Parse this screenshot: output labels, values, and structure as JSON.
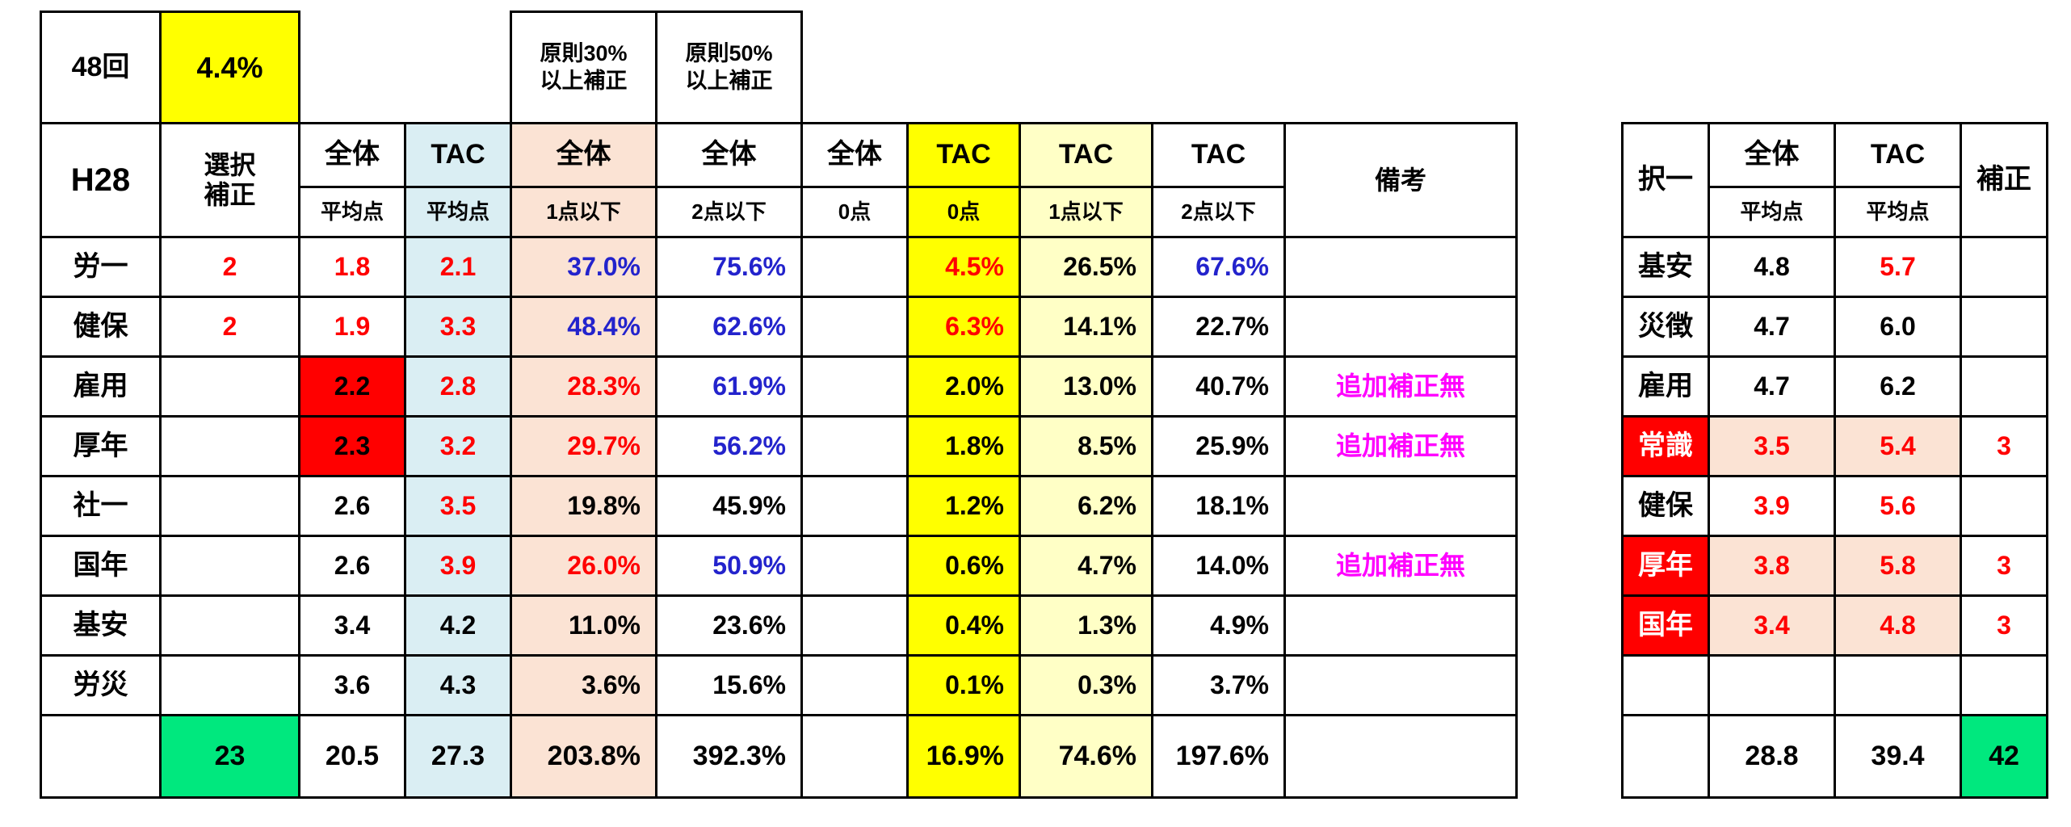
{
  "colors": {
    "black": "#000000",
    "white": "#ffffff",
    "red": "#ff0000",
    "blue": "#2323cc",
    "magenta": "#ff00ff",
    "yellow": "#ffff00",
    "lblue": "#daeef3",
    "peach": "#fbe3d4",
    "lyellow": "#ffffc6",
    "green": "#00e87e"
  },
  "left": {
    "top": {
      "exam": "48回",
      "rate": "4.4%",
      "rule30": "原則30%\n以上補正",
      "rule50": "原則50%\n以上補正"
    },
    "header": {
      "h28": "H28",
      "sentaku": "選択\n補正",
      "biko": "備考",
      "groups": [
        "全体",
        "TAC",
        "全体",
        "全体",
        "全体",
        "TAC",
        "TAC",
        "TAC"
      ],
      "subs": [
        "平均点",
        "平均点",
        "1点以下",
        "2点以下",
        "0点",
        "0点",
        "1点以下",
        "2点以下"
      ]
    },
    "rows": [
      {
        "label": {
          "t": "労一"
        },
        "cells": [
          {
            "t": "2",
            "c": "red"
          },
          {
            "t": "1.8",
            "c": "red"
          },
          {
            "t": "2.1",
            "c": "red"
          },
          {
            "t": "37.0%",
            "c": "blue"
          },
          {
            "t": "75.6%",
            "c": "blue"
          },
          {
            "t": ""
          },
          {
            "t": "4.5%",
            "c": "red"
          },
          {
            "t": "26.5%"
          },
          {
            "t": "67.6%",
            "c": "blue"
          },
          {
            "t": ""
          }
        ]
      },
      {
        "label": {
          "t": "健保"
        },
        "cells": [
          {
            "t": "2",
            "c": "red"
          },
          {
            "t": "1.9",
            "c": "red"
          },
          {
            "t": "3.3",
            "c": "red"
          },
          {
            "t": "48.4%",
            "c": "blue"
          },
          {
            "t": "62.6%",
            "c": "blue"
          },
          {
            "t": ""
          },
          {
            "t": "6.3%",
            "c": "red"
          },
          {
            "t": "14.1%"
          },
          {
            "t": "22.7%"
          },
          {
            "t": ""
          }
        ]
      },
      {
        "label": {
          "t": "雇用"
        },
        "cells": [
          {
            "t": ""
          },
          {
            "t": "2.2",
            "b": "red"
          },
          {
            "t": "2.8",
            "c": "red"
          },
          {
            "t": "28.3%",
            "c": "red"
          },
          {
            "t": "61.9%",
            "c": "blue"
          },
          {
            "t": ""
          },
          {
            "t": "2.0%"
          },
          {
            "t": "13.0%"
          },
          {
            "t": "40.7%"
          },
          {
            "t": "追加補正無",
            "c": "magenta"
          }
        ]
      },
      {
        "label": {
          "t": "厚年"
        },
        "cells": [
          {
            "t": ""
          },
          {
            "t": "2.3",
            "b": "red"
          },
          {
            "t": "3.2",
            "c": "red"
          },
          {
            "t": "29.7%",
            "c": "red"
          },
          {
            "t": "56.2%",
            "c": "blue"
          },
          {
            "t": ""
          },
          {
            "t": "1.8%"
          },
          {
            "t": "8.5%"
          },
          {
            "t": "25.9%"
          },
          {
            "t": "追加補正無",
            "c": "magenta"
          }
        ]
      },
      {
        "label": {
          "t": "社一"
        },
        "cells": [
          {
            "t": ""
          },
          {
            "t": "2.6"
          },
          {
            "t": "3.5",
            "c": "red"
          },
          {
            "t": "19.8%"
          },
          {
            "t": "45.9%"
          },
          {
            "t": ""
          },
          {
            "t": "1.2%"
          },
          {
            "t": "6.2%"
          },
          {
            "t": "18.1%"
          },
          {
            "t": ""
          }
        ]
      },
      {
        "label": {
          "t": "国年"
        },
        "cells": [
          {
            "t": ""
          },
          {
            "t": "2.6"
          },
          {
            "t": "3.9",
            "c": "red"
          },
          {
            "t": "26.0%",
            "c": "red"
          },
          {
            "t": "50.9%",
            "c": "blue"
          },
          {
            "t": ""
          },
          {
            "t": "0.6%"
          },
          {
            "t": "4.7%"
          },
          {
            "t": "14.0%"
          },
          {
            "t": "追加補正無",
            "c": "magenta"
          }
        ]
      },
      {
        "label": {
          "t": "基安"
        },
        "cells": [
          {
            "t": ""
          },
          {
            "t": "3.4"
          },
          {
            "t": "4.2"
          },
          {
            "t": "11.0%"
          },
          {
            "t": "23.6%"
          },
          {
            "t": ""
          },
          {
            "t": "0.4%"
          },
          {
            "t": "1.3%"
          },
          {
            "t": "4.9%"
          },
          {
            "t": ""
          }
        ]
      },
      {
        "label": {
          "t": "労災"
        },
        "cells": [
          {
            "t": ""
          },
          {
            "t": "3.6"
          },
          {
            "t": "4.3"
          },
          {
            "t": "3.6%"
          },
          {
            "t": "15.6%"
          },
          {
            "t": ""
          },
          {
            "t": "0.1%"
          },
          {
            "t": "0.3%"
          },
          {
            "t": "3.7%"
          },
          {
            "t": ""
          }
        ]
      }
    ],
    "total_row": {
      "label": {
        "t": ""
      },
      "cells": [
        {
          "t": "23",
          "b": "green"
        },
        {
          "t": "20.5"
        },
        {
          "t": "27.3"
        },
        {
          "t": "203.8%"
        },
        {
          "t": "392.3%"
        },
        {
          "t": ""
        },
        {
          "t": "16.9%"
        },
        {
          "t": "74.6%"
        },
        {
          "t": "197.6%"
        },
        {
          "t": ""
        }
      ]
    }
  },
  "right": {
    "header": {
      "takuitsu": "択一",
      "hosei": "補正",
      "groups": [
        "全体",
        "TAC"
      ],
      "subs": [
        "平均点",
        "平均点"
      ]
    },
    "rows": [
      {
        "label": {
          "t": "基安"
        },
        "cells": [
          {
            "t": "4.8"
          },
          {
            "t": "5.7",
            "c": "red"
          },
          {
            "t": ""
          }
        ]
      },
      {
        "label": {
          "t": "災徴"
        },
        "cells": [
          {
            "t": "4.7"
          },
          {
            "t": "6.0"
          },
          {
            "t": ""
          }
        ]
      },
      {
        "label": {
          "t": "雇用"
        },
        "cells": [
          {
            "t": "4.7"
          },
          {
            "t": "6.2"
          },
          {
            "t": ""
          }
        ]
      },
      {
        "label": {
          "t": "常識",
          "c": "white",
          "b": "red"
        },
        "cells": [
          {
            "t": "3.5",
            "c": "red",
            "b": "peach"
          },
          {
            "t": "5.4",
            "c": "red",
            "b": "peach"
          },
          {
            "t": "3",
            "c": "red"
          }
        ]
      },
      {
        "label": {
          "t": "健保"
        },
        "cells": [
          {
            "t": "3.9",
            "c": "red"
          },
          {
            "t": "5.6",
            "c": "red"
          },
          {
            "t": ""
          }
        ]
      },
      {
        "label": {
          "t": "厚年",
          "c": "white",
          "b": "red"
        },
        "cells": [
          {
            "t": "3.8",
            "c": "red",
            "b": "peach"
          },
          {
            "t": "5.8",
            "c": "red",
            "b": "peach"
          },
          {
            "t": "3",
            "c": "red"
          }
        ]
      },
      {
        "label": {
          "t": "国年",
          "c": "white",
          "b": "red"
        },
        "cells": [
          {
            "t": "3.4",
            "c": "red",
            "b": "peach"
          },
          {
            "t": "4.8",
            "c": "red",
            "b": "peach"
          },
          {
            "t": "3",
            "c": "red"
          }
        ]
      },
      {
        "label": {
          "t": ""
        },
        "cells": [
          {
            "t": ""
          },
          {
            "t": ""
          },
          {
            "t": ""
          }
        ]
      }
    ],
    "total_row": {
      "label": {
        "t": ""
      },
      "cells": [
        {
          "t": "28.8"
        },
        {
          "t": "39.4"
        },
        {
          "t": "42",
          "b": "green"
        }
      ]
    }
  }
}
